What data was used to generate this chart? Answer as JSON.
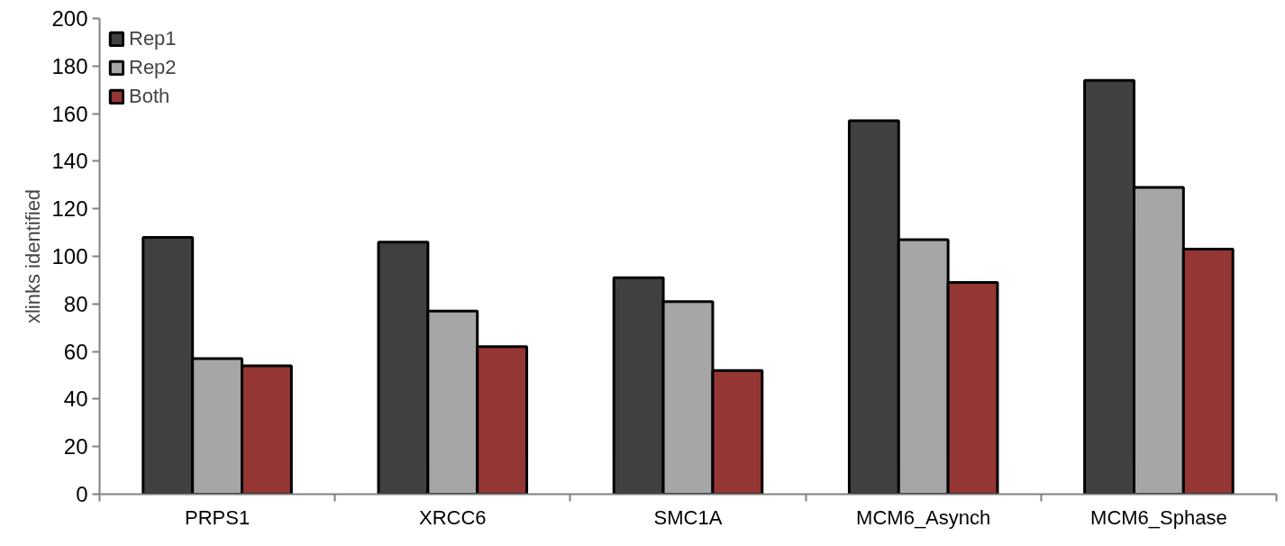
{
  "chart_data": {
    "type": "bar",
    "ylabel": "xlinks identified",
    "categories": [
      "PRPS1",
      "XRCC6",
      "SMC1A",
      "MCM6_Asynch",
      "MCM6_Sphase"
    ],
    "series": [
      {
        "name": "Rep1",
        "color": "#404040",
        "values": [
          108,
          106,
          91,
          157,
          174
        ]
      },
      {
        "name": "Rep2",
        "color": "#a6a6a6",
        "values": [
          57,
          77,
          81,
          107,
          129
        ]
      },
      {
        "name": "Both",
        "color": "#943634",
        "values": [
          54,
          62,
          52,
          89,
          103
        ]
      }
    ],
    "ylim": [
      0,
      200
    ],
    "yticks": [
      0,
      20,
      40,
      60,
      80,
      100,
      120,
      140,
      160,
      180,
      200
    ],
    "grid": false,
    "legend": "top left"
  }
}
